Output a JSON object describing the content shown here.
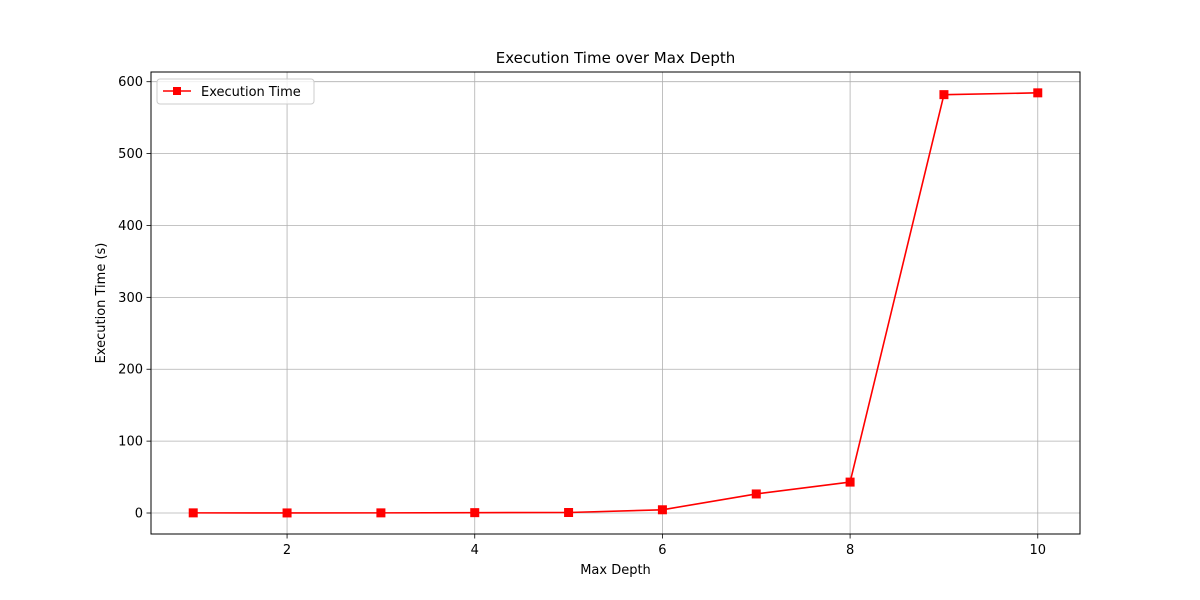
{
  "chart_data": {
    "type": "line",
    "title": "Execution Time over Max Depth",
    "xlabel": "Max Depth",
    "ylabel": "Execution Time (s)",
    "x": [
      1,
      2,
      3,
      4,
      5,
      6,
      7,
      8,
      9,
      10
    ],
    "series": [
      {
        "name": "Execution Time",
        "values": [
          0.2,
          0.1,
          0.2,
          0.5,
          0.7,
          4.5,
          26.5,
          43,
          582,
          584.5
        ],
        "color": "#ff0000",
        "marker": "square"
      }
    ],
    "xlim": [
      0.55,
      10.45
    ],
    "ylim": [
      -29.2,
      613.5
    ],
    "xticks": [
      2,
      4,
      6,
      8,
      10
    ],
    "yticks": [
      0,
      100,
      200,
      300,
      400,
      500,
      600
    ],
    "grid": true,
    "legend_position": "top-left"
  }
}
